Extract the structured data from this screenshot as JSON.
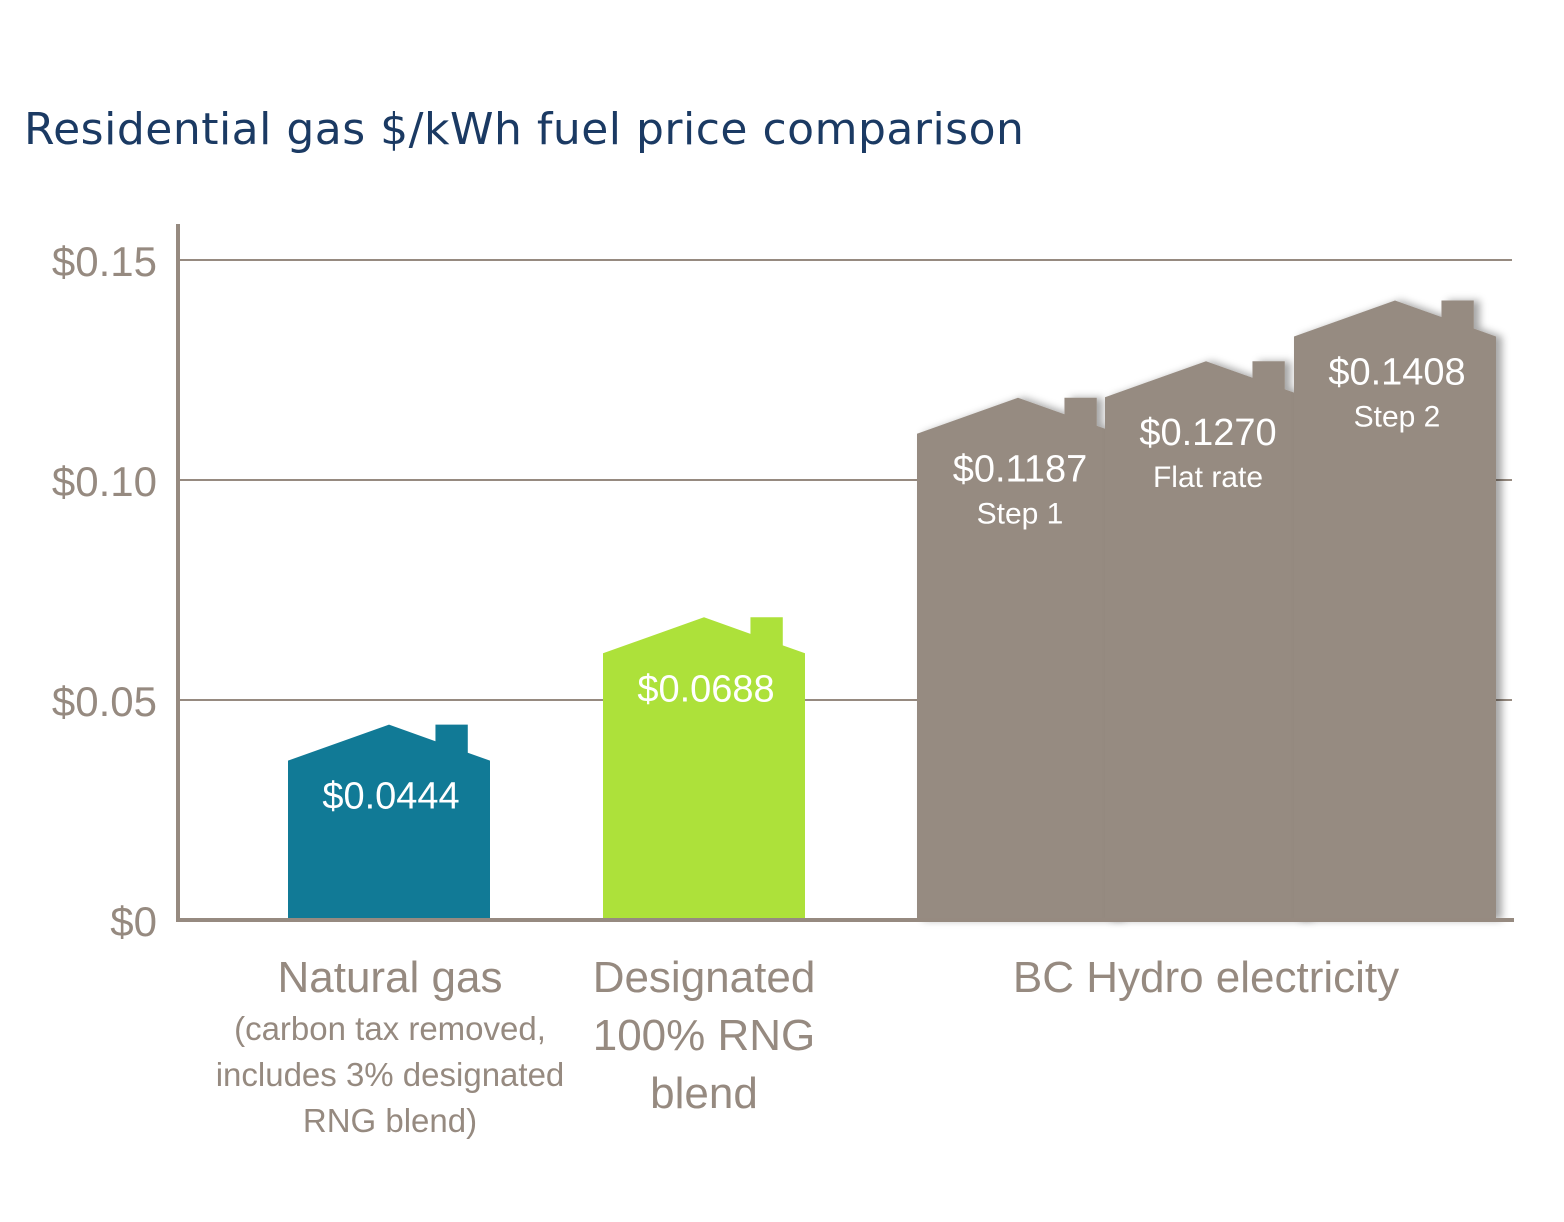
{
  "chart_data": {
    "type": "bar",
    "title": "Residential gas $/kWh fuel price comparison",
    "xlabel": "",
    "ylabel": "",
    "ylim": [
      0,
      0.15
    ],
    "y_ticks": [
      "$0",
      "$0.05",
      "$0.10",
      "$0.15"
    ],
    "y_tick_values": [
      0,
      0.05,
      0.1,
      0.15
    ],
    "grid": true,
    "bar_shape": "house",
    "categories": [
      {
        "label": "Natural gas",
        "sublines": [
          "(carbon tax removed,",
          "includes 3% designated",
          "RNG blend)"
        ]
      },
      {
        "label": "",
        "sublines": [
          "Designated",
          "100% RNG",
          "blend"
        ]
      },
      {
        "label": "BC Hydro electricity",
        "sublines": []
      }
    ],
    "bars": [
      {
        "category": 0,
        "value": 0.0444,
        "value_label": "$0.0444",
        "sub_label": "",
        "color": "#117a96"
      },
      {
        "category": 1,
        "value": 0.0688,
        "value_label": "$0.0688",
        "sub_label": "",
        "color": "#ade13a"
      },
      {
        "category": 2,
        "value": 0.1187,
        "value_label": "$0.1187",
        "sub_label": "Step 1",
        "color": "#968b81"
      },
      {
        "category": 2,
        "value": 0.127,
        "value_label": "$0.1270",
        "sub_label": "Flat rate",
        "color": "#968b81"
      },
      {
        "category": 2,
        "value": 0.1408,
        "value_label": "$0.1408",
        "sub_label": "Step 2",
        "color": "#968b81"
      }
    ],
    "axis_color": "#968a80"
  }
}
